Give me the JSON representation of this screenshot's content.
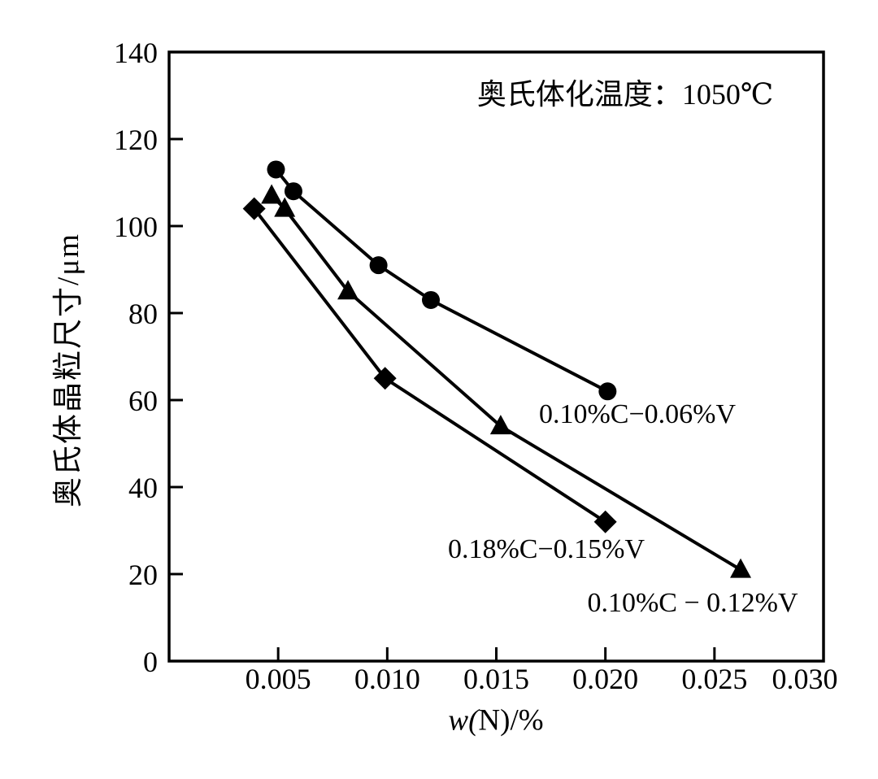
{
  "figure": {
    "background": "#ffffff",
    "ink_color": "#000000"
  },
  "chart_data": {
    "type": "line",
    "title": "",
    "annotation": "奥氏体化温度：1050℃",
    "xlabel": "w(N)/%",
    "ylabel": "奥氏体晶粒尺寸/μm",
    "xlim": [
      0,
      0.03
    ],
    "ylim": [
      0,
      140
    ],
    "xticks": [
      "0.005",
      "0.010",
      "0.015",
      "0.020",
      "0.025",
      "0.030"
    ],
    "yticks": [
      "0",
      "20",
      "40",
      "60",
      "80",
      "100",
      "120",
      "140"
    ],
    "grid": false,
    "legend_position": "inline-labels-near-lines",
    "series": [
      {
        "name": "0.10%C−0.06%V",
        "marker": "circle",
        "color": "#000000",
        "points": [
          [
            0.0049,
            113
          ],
          [
            0.0057,
            108
          ],
          [
            0.0096,
            91
          ],
          [
            0.012,
            83
          ],
          [
            0.0201,
            62
          ]
        ]
      },
      {
        "name": "0.10%C − 0.12%V",
        "marker": "triangle",
        "color": "#000000",
        "points": [
          [
            0.0047,
            107
          ],
          [
            0.0053,
            104
          ],
          [
            0.0082,
            85
          ],
          [
            0.0152,
            54
          ],
          [
            0.0262,
            21
          ]
        ]
      },
      {
        "name": "0.18%C−0.15%V",
        "marker": "diamond",
        "color": "#000000",
        "points": [
          [
            0.0039,
            104
          ],
          [
            0.0099,
            65
          ],
          [
            0.02,
            32
          ]
        ]
      }
    ]
  }
}
